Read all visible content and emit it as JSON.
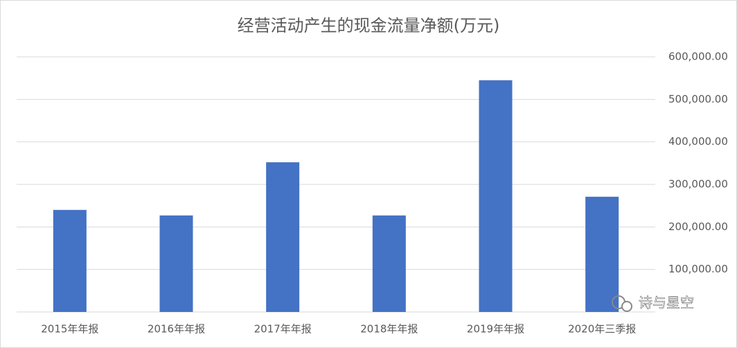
{
  "chart_data": {
    "type": "bar",
    "title": "经营活动产生的现金流量净额(万元)",
    "categories": [
      "2015年年报",
      "2016年年报",
      "2017年年报",
      "2018年年报",
      "2019年年报",
      "2020年三季报"
    ],
    "values": [
      240000,
      227000,
      352000,
      227000,
      545000,
      271000
    ],
    "color": "#4472c4",
    "ylim": [
      0,
      600000
    ],
    "yticks": [
      {
        "value": 100000,
        "label": "100,000.00"
      },
      {
        "value": 200000,
        "label": "200,000.00"
      },
      {
        "value": 300000,
        "label": "300,000.00"
      },
      {
        "value": 400000,
        "label": "400,000.00"
      },
      {
        "value": 500000,
        "label": "500,000.00"
      },
      {
        "value": 600000,
        "label": "600,000.00"
      }
    ],
    "y_axis_side": "right",
    "grid": true,
    "watermark": "诗与星空"
  }
}
